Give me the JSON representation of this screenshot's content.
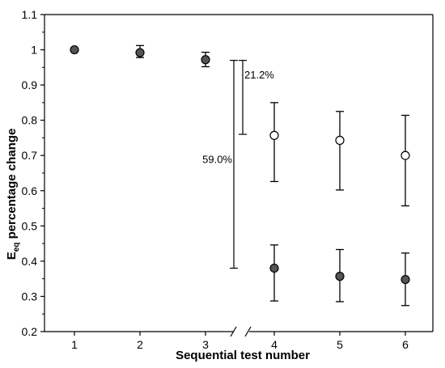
{
  "chart_data": {
    "type": "scatter",
    "xlabel": "Sequential test number",
    "ylabel": "E",
    "ylabel_sub": "eq",
    "ylabel_rest": " percentage change",
    "ylim": [
      0.2,
      1.1
    ],
    "yticks": [
      "0.2",
      "0.3",
      "0.4",
      "0.5",
      "0.6",
      "0.7",
      "0.8",
      "0.9",
      "1",
      "1.1"
    ],
    "xticks": [
      "1",
      "2",
      "3",
      "4",
      "5",
      "6"
    ],
    "axis_break": "between 3 and 4",
    "series": [
      {
        "marker": "filled",
        "color": "#555555",
        "points": [
          {
            "x": 1,
            "y": 1.0,
            "lo": 1.0,
            "hi": 1.0
          },
          {
            "x": 2,
            "y": 0.992,
            "lo": 0.978,
            "hi": 1.012
          },
          {
            "x": 3,
            "y": 0.972,
            "lo": 0.952,
            "hi": 0.993
          },
          {
            "x": 4,
            "y": 0.38,
            "lo": 0.287,
            "hi": 0.446
          },
          {
            "x": 5,
            "y": 0.357,
            "lo": 0.285,
            "hi": 0.433
          },
          {
            "x": 6,
            "y": 0.348,
            "lo": 0.274,
            "hi": 0.423
          }
        ]
      },
      {
        "marker": "open",
        "color": "#ffffff",
        "points": [
          {
            "x": 4,
            "y": 0.757,
            "lo": 0.626,
            "hi": 0.85
          },
          {
            "x": 5,
            "y": 0.743,
            "lo": 0.602,
            "hi": 0.825
          },
          {
            "x": 6,
            "y": 0.7,
            "lo": 0.557,
            "hi": 0.814
          }
        ]
      }
    ],
    "annotations": [
      {
        "text": "21.2%",
        "from": 0.97,
        "to": 0.76
      },
      {
        "text": "59.0%",
        "from": 0.97,
        "to": 0.38
      }
    ]
  }
}
